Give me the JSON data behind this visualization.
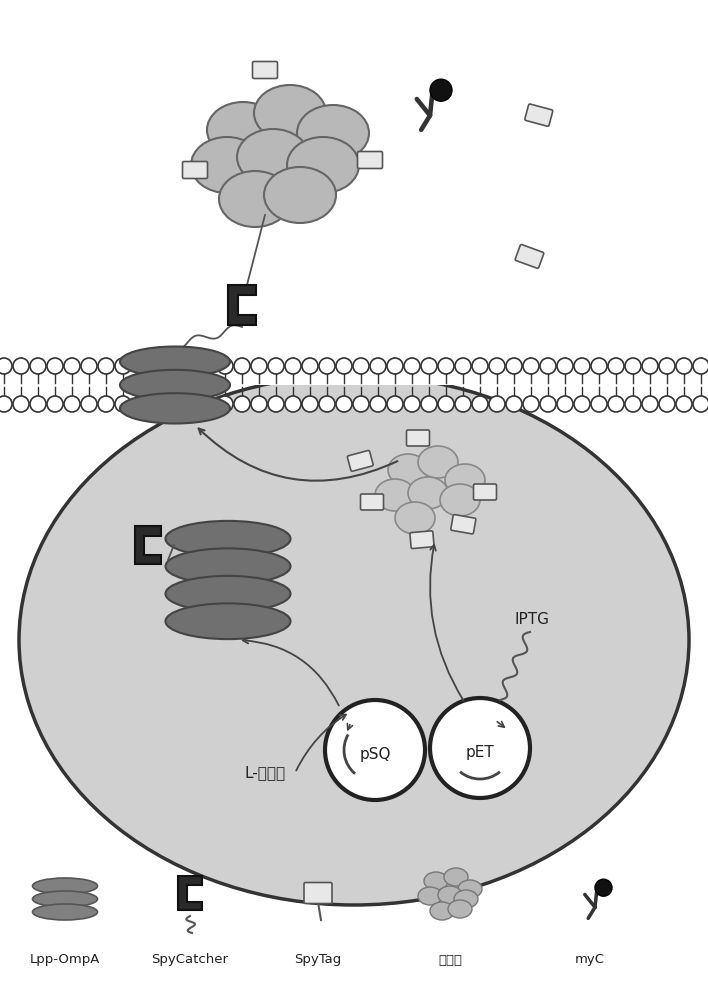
{
  "bg_color": "#ffffff",
  "cell_fill": "#d0d0d0",
  "cell_edge": "#333333",
  "membrane_head_fill": "#ffffff",
  "membrane_edge": "#333333",
  "ompa_fill": "#707070",
  "ompa_edge": "#444444",
  "fluor_fill_outer": "#b5b5b5",
  "fluor_fill_inner": "#c8c8c8",
  "fluor_edge": "#666666",
  "spycatcher_fill": "#2a2a2a",
  "spycatcher_edge": "#111111",
  "spytag_fill": "#e8e8e8",
  "spytag_edge": "#555555",
  "myc_color": "#333333",
  "myc_ball": "#111111",
  "arrow_color": "#444444",
  "labels": [
    "Lpp-OmpA",
    "SpyCatcher",
    "SpyTag",
    "氟化醂",
    "myC"
  ],
  "label_iptg": "IPTG",
  "label_lrhamnose": "L-鼠李糖",
  "label_psq": "pSQ",
  "label_pet": "pET",
  "figw": 7.08,
  "figh": 10.0,
  "dpi": 100
}
